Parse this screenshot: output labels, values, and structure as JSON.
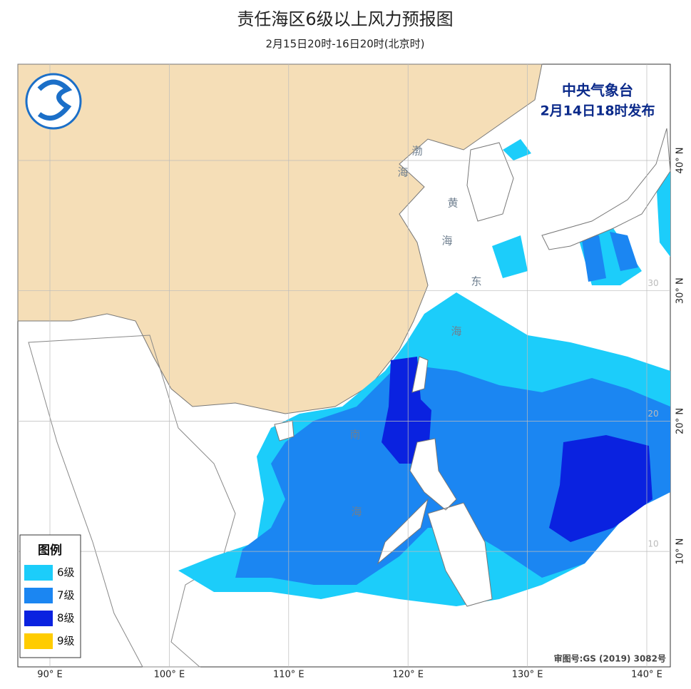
{
  "header": {
    "title": "责任海区6级以上风力预报图",
    "subtitle": "2月15日20时-16日20时(北京时)"
  },
  "issuer": {
    "name": "中央气象台",
    "time": "2月14日18时发布"
  },
  "legend": {
    "title": "图例",
    "items": [
      {
        "label": "6级",
        "color": "#1ccdfa"
      },
      {
        "label": "7级",
        "color": "#1b86f2"
      },
      {
        "label": "8级",
        "color": "#0a22e0"
      },
      {
        "label": "9级",
        "color": "#ffcc00"
      }
    ]
  },
  "grid": {
    "lon": [
      {
        "value": 90,
        "label": "90° E"
      },
      {
        "value": 100,
        "label": "100° E"
      },
      {
        "value": 110,
        "label": "110° E"
      },
      {
        "value": 120,
        "label": "120° E"
      },
      {
        "value": 130,
        "label": "130° E"
      },
      {
        "value": 140,
        "label": "140° E"
      }
    ],
    "lat": [
      {
        "value": 40,
        "label": "40° N"
      },
      {
        "value": 30,
        "label": "30° N"
      },
      {
        "value": 20,
        "label": "20° N"
      },
      {
        "value": 10,
        "label": "10° N"
      }
    ],
    "lat_inner": [
      {
        "value": 30,
        "label": "30"
      },
      {
        "value": 20,
        "label": "20"
      },
      {
        "value": 10,
        "label": "10"
      }
    ]
  },
  "seas": [
    "渤",
    "海",
    "黄",
    "海",
    "东",
    "海",
    "南",
    "海"
  ],
  "approval": "审图号:GS (2019) 3082号"
}
